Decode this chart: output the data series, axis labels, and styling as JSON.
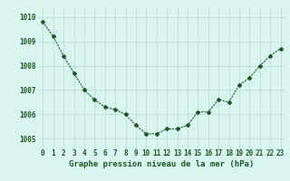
{
  "x": [
    0,
    1,
    2,
    3,
    4,
    5,
    6,
    7,
    8,
    9,
    10,
    11,
    12,
    13,
    14,
    15,
    16,
    17,
    18,
    19,
    20,
    21,
    22,
    23
  ],
  "y": [
    1009.8,
    1009.2,
    1008.4,
    1007.7,
    1007.0,
    1006.6,
    1006.3,
    1006.2,
    1006.0,
    1005.55,
    1005.2,
    1005.2,
    1005.4,
    1005.4,
    1005.55,
    1006.1,
    1006.1,
    1006.6,
    1006.5,
    1007.2,
    1007.5,
    1008.0,
    1008.4,
    1008.7
  ],
  "line_color": "#1a5c1a",
  "marker": "D",
  "markersize": 2.0,
  "linewidth": 0.8,
  "bg_color": "#d8f5f0",
  "grid_color": "#b8d8d0",
  "xlabel": "Graphe pression niveau de la mer (hPa)",
  "xlabel_fontsize": 6.5,
  "ytick_labels": [
    "1005",
    "1006",
    "1007",
    "1008",
    "1009",
    "1010"
  ],
  "yticks": [
    1005,
    1006,
    1007,
    1008,
    1009,
    1010
  ],
  "ylim": [
    1004.6,
    1010.4
  ],
  "xlim": [
    -0.5,
    23.5
  ],
  "tick_fontsize": 5.5,
  "label_color": "#1a5c1a"
}
